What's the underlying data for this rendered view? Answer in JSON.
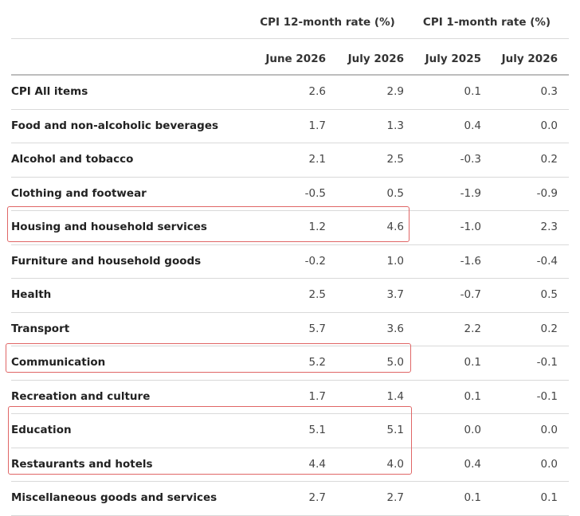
{
  "header": {
    "group_12m": "CPI 12-month rate (%)",
    "group_1m": "CPI 1-month rate (%)",
    "columns": [
      "June 2026",
      "July 2026",
      "July 2025",
      "July 2026"
    ]
  },
  "rows": [
    {
      "label": "CPI All items",
      "values": [
        "2.6",
        "2.9",
        "0.1",
        "0.3"
      ]
    },
    {
      "label": "Food and non-alcoholic beverages",
      "values": [
        "1.7",
        "1.3",
        "0.4",
        "0.0"
      ]
    },
    {
      "label": "Alcohol and tobacco",
      "values": [
        "2.1",
        "2.5",
        "-0.3",
        "0.2"
      ]
    },
    {
      "label": "Clothing and footwear",
      "values": [
        "-0.5",
        "0.5",
        "-1.9",
        "-0.9"
      ]
    },
    {
      "label": "Housing and household services",
      "values": [
        "1.2",
        "4.6",
        "-1.0",
        "2.3"
      ]
    },
    {
      "label": "Furniture and household goods",
      "values": [
        "-0.2",
        "1.0",
        "-1.6",
        "-0.4"
      ]
    },
    {
      "label": "Health",
      "values": [
        "2.5",
        "3.7",
        "-0.7",
        "0.5"
      ]
    },
    {
      "label": "Transport",
      "values": [
        "5.7",
        "3.6",
        "2.2",
        "0.2"
      ]
    },
    {
      "label": "Communication",
      "values": [
        "5.2",
        "5.0",
        "0.1",
        "-0.1"
      ]
    },
    {
      "label": "Recreation and culture",
      "values": [
        "1.7",
        "1.4",
        "0.1",
        "-0.1"
      ]
    },
    {
      "label": "Education",
      "values": [
        "5.1",
        "5.1",
        "0.0",
        "0.0"
      ]
    },
    {
      "label": "Restaurants and hotels",
      "values": [
        "4.4",
        "4.0",
        "0.4",
        "0.0"
      ]
    },
    {
      "label": "Miscellaneous goods and services",
      "values": [
        "2.7",
        "2.7",
        "0.1",
        "0.1"
      ]
    }
  ],
  "highlight_color": "#e06666"
}
